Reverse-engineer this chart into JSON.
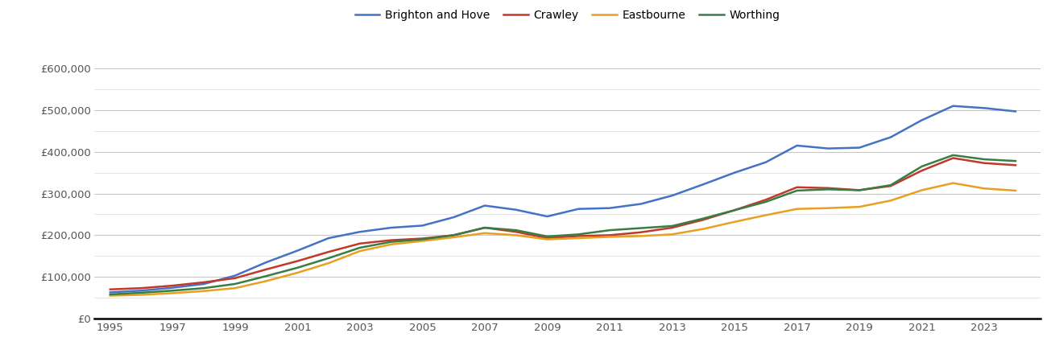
{
  "years": [
    1995,
    1996,
    1997,
    1998,
    1999,
    2000,
    2001,
    2002,
    2003,
    2004,
    2005,
    2006,
    2007,
    2008,
    2009,
    2010,
    2011,
    2012,
    2013,
    2014,
    2015,
    2016,
    2017,
    2018,
    2019,
    2020,
    2021,
    2022,
    2023,
    2024
  ],
  "brighton_and_hove": [
    63000,
    67000,
    74000,
    83000,
    103000,
    135000,
    163000,
    193000,
    208000,
    218000,
    223000,
    243000,
    271000,
    261000,
    245000,
    263000,
    265000,
    275000,
    295000,
    322000,
    350000,
    375000,
    415000,
    408000,
    410000,
    435000,
    476000,
    510000,
    505000,
    497000
  ],
  "crawley": [
    70000,
    73000,
    79000,
    87000,
    97000,
    118000,
    138000,
    160000,
    180000,
    188000,
    192000,
    200000,
    218000,
    208000,
    193000,
    198000,
    200000,
    207000,
    218000,
    237000,
    260000,
    285000,
    315000,
    313000,
    308000,
    318000,
    355000,
    385000,
    373000,
    368000
  ],
  "eastbourne": [
    55000,
    57000,
    61000,
    66000,
    73000,
    90000,
    110000,
    133000,
    162000,
    178000,
    186000,
    195000,
    205000,
    200000,
    190000,
    193000,
    196000,
    198000,
    202000,
    215000,
    232000,
    248000,
    263000,
    265000,
    268000,
    283000,
    308000,
    325000,
    312000,
    307000
  ],
  "worthing": [
    58000,
    62000,
    67000,
    73000,
    83000,
    102000,
    122000,
    145000,
    170000,
    184000,
    190000,
    200000,
    218000,
    212000,
    197000,
    202000,
    212000,
    217000,
    222000,
    240000,
    260000,
    280000,
    307000,
    310000,
    308000,
    320000,
    365000,
    392000,
    382000,
    378000
  ],
  "colors": {
    "brighton_and_hove": "#4472c4",
    "crawley": "#c0392b",
    "eastbourne": "#e8a020",
    "worthing": "#3a7d44"
  },
  "legend_labels": [
    "Brighton and Hove",
    "Crawley",
    "Eastbourne",
    "Worthing"
  ],
  "yticks": [
    0,
    100000,
    200000,
    300000,
    400000,
    500000,
    600000
  ],
  "ytick_minor": [
    50000,
    150000,
    250000,
    350000,
    450000,
    550000
  ],
  "ytick_labels": [
    "£0",
    "£100,000",
    "£200,000",
    "£300,000",
    "£400,000",
    "£500,000",
    "£600,000"
  ],
  "xticks": [
    1995,
    1997,
    1999,
    2001,
    2003,
    2005,
    2007,
    2009,
    2011,
    2013,
    2015,
    2017,
    2019,
    2021,
    2023
  ],
  "ylim": [
    0,
    660000
  ],
  "xlim": [
    1994.5,
    2024.8
  ],
  "background_color": "#ffffff",
  "grid_color_major": "#c8c8c8",
  "grid_color_minor": "#e0e0e0",
  "line_width": 1.8
}
